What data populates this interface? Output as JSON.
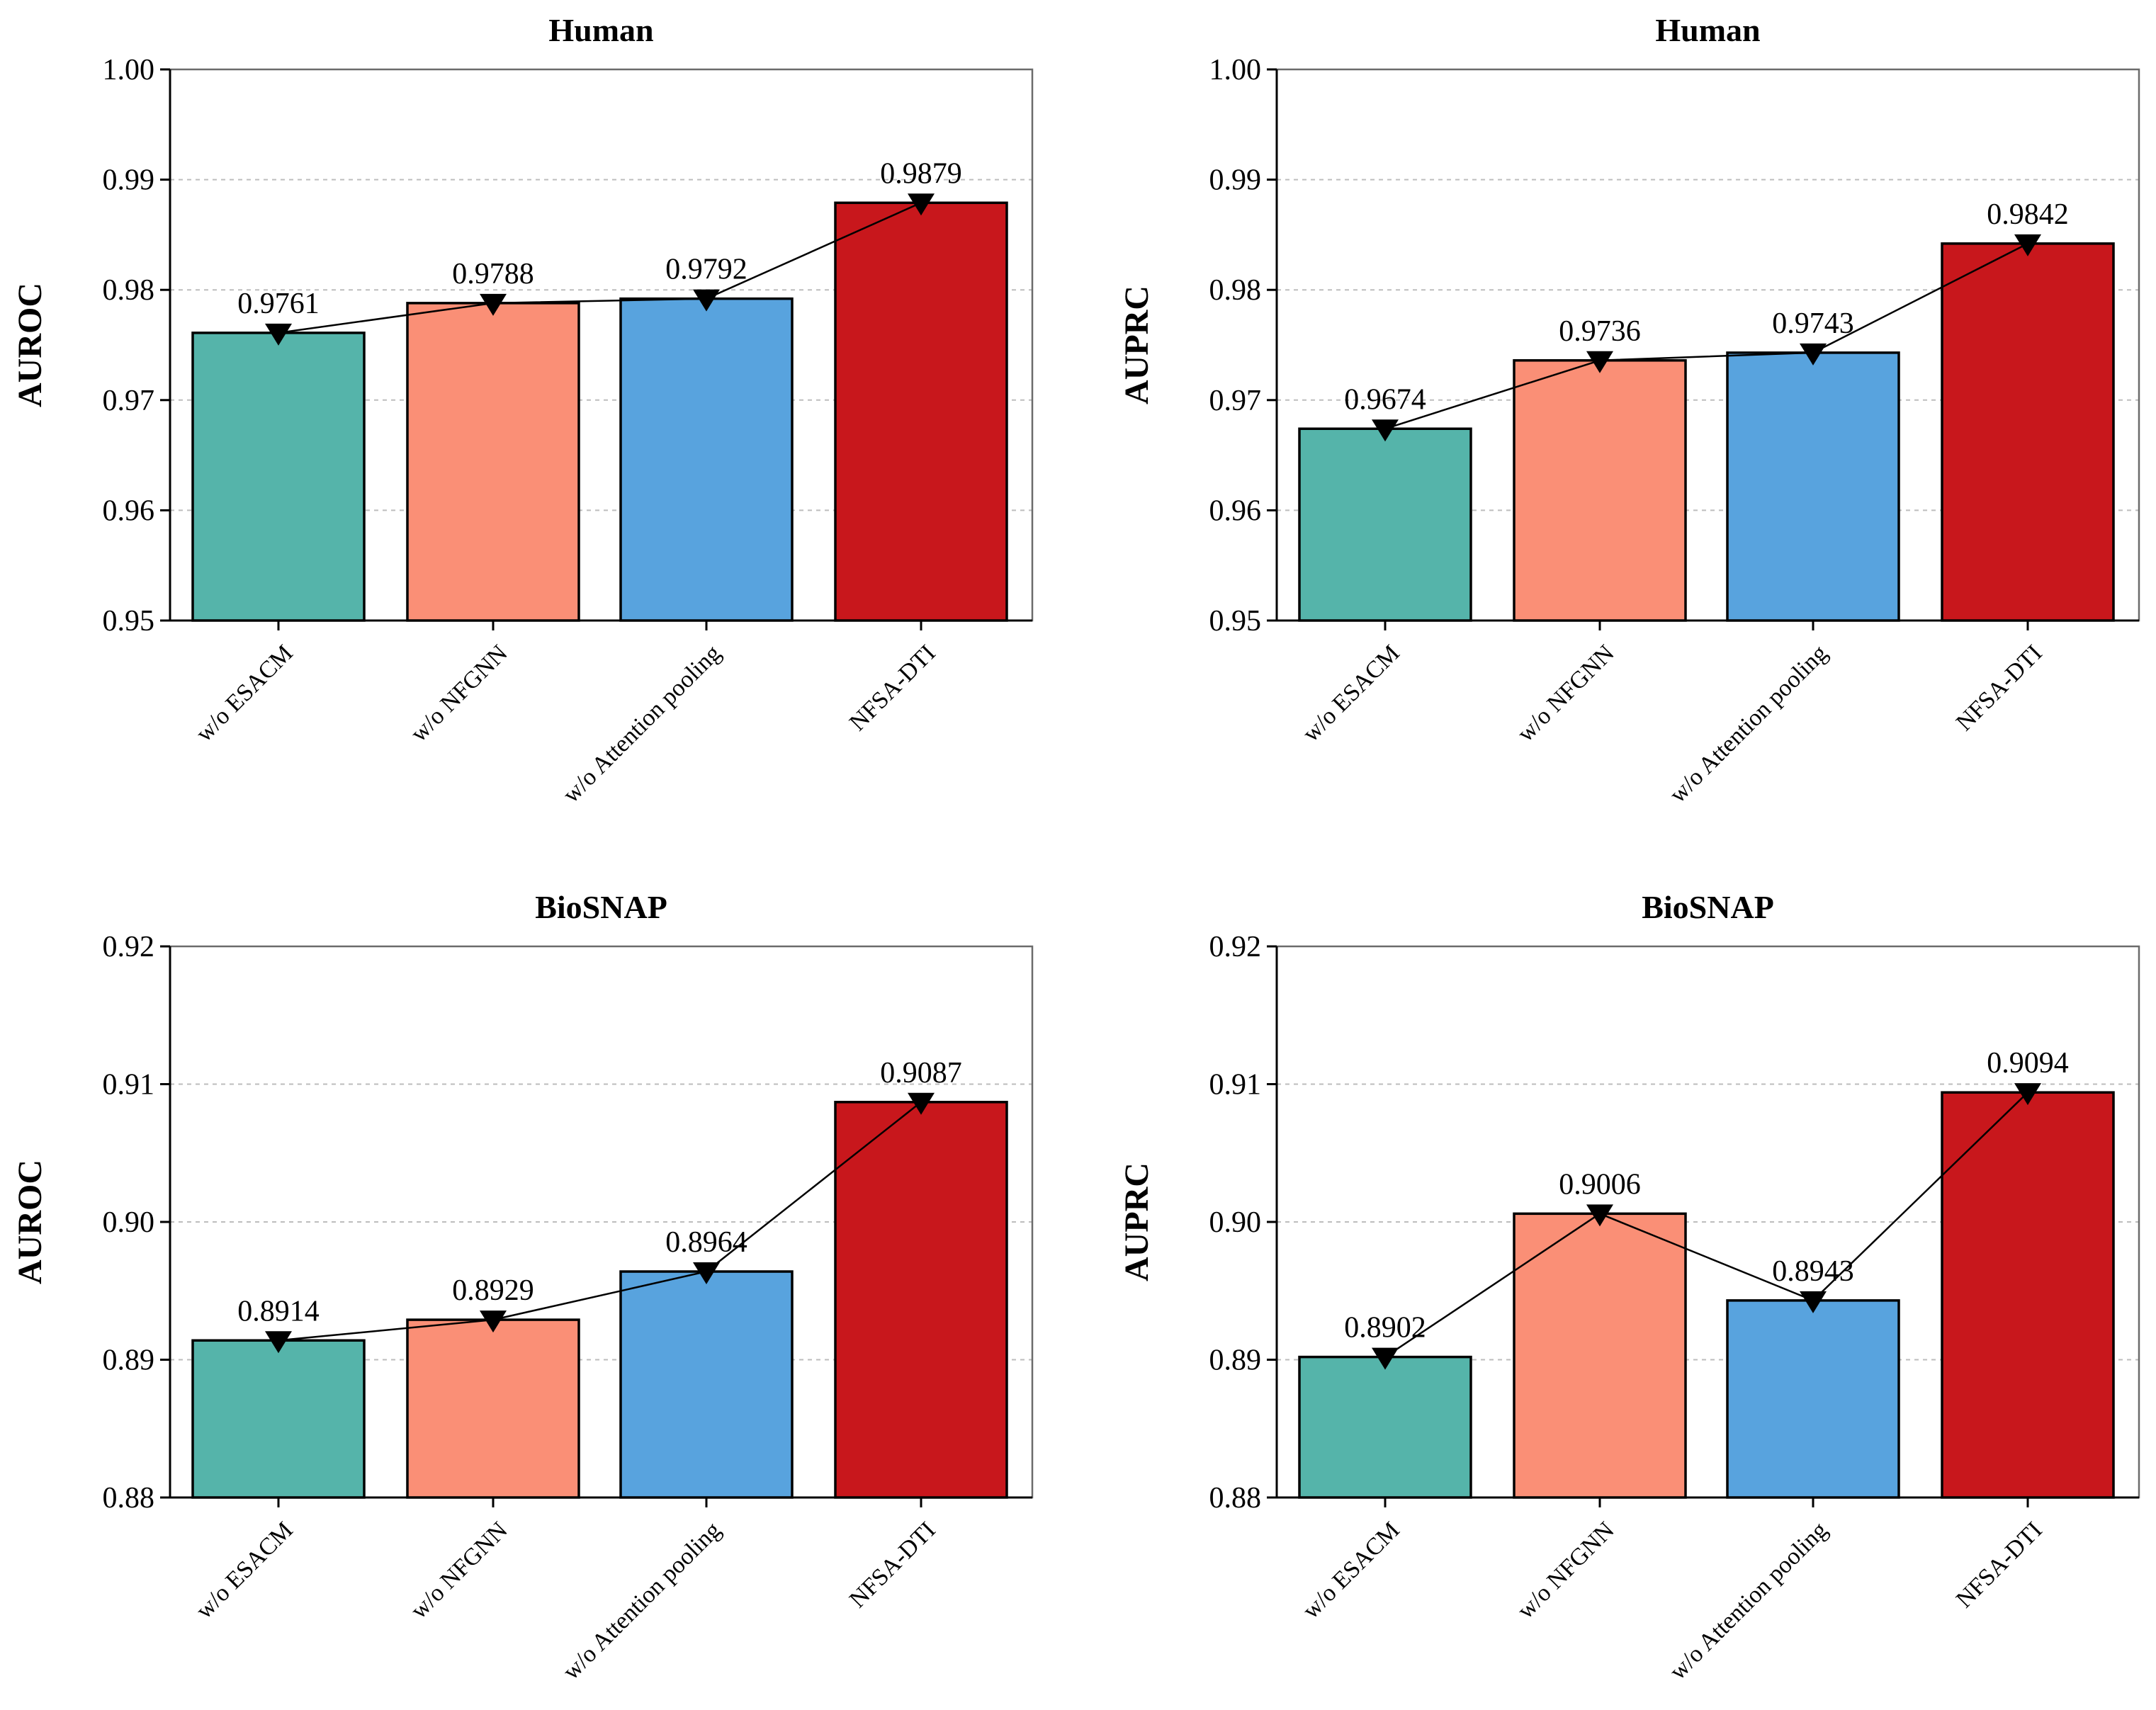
{
  "colors": [
    "#55b4aa",
    "#fa8f76",
    "#58a3de",
    "#c8171c"
  ],
  "chart_data": [
    {
      "type": "bar",
      "title": "Human",
      "ylabel": "AUROC",
      "xlabel": "",
      "categories": [
        "w/o ESACM",
        "w/o NFGNN",
        "w/o Attention pooling",
        "NFSA-DTI"
      ],
      "values": [
        0.9761,
        0.9788,
        0.9792,
        0.9879
      ],
      "value_labels": [
        "0.9761",
        "0.9788",
        "0.9792",
        "0.9879"
      ],
      "ylim": [
        0.95,
        1.0
      ],
      "yticks": [
        0.95,
        0.96,
        0.97,
        0.98,
        0.99,
        1.0
      ],
      "ytick_labels": [
        "0.95",
        "0.96",
        "0.97",
        "0.98",
        "0.99",
        "1.00"
      ],
      "grid": true,
      "overlay": "line with downward triangle markers"
    },
    {
      "type": "bar",
      "title": "Human",
      "ylabel": "AUPRC",
      "xlabel": "",
      "categories": [
        "w/o ESACM",
        "w/o NFGNN",
        "w/o Attention pooling",
        "NFSA-DTI"
      ],
      "values": [
        0.9674,
        0.9736,
        0.9743,
        0.9842
      ],
      "value_labels": [
        "0.9674",
        "0.9736",
        "0.9743",
        "0.9842"
      ],
      "ylim": [
        0.95,
        1.0
      ],
      "yticks": [
        0.95,
        0.96,
        0.97,
        0.98,
        0.99,
        1.0
      ],
      "ytick_labels": [
        "0.95",
        "0.96",
        "0.97",
        "0.98",
        "0.99",
        "1.00"
      ],
      "grid": true,
      "overlay": "line with downward triangle markers"
    },
    {
      "type": "bar",
      "title": "BioSNAP",
      "ylabel": "AUROC",
      "xlabel": "",
      "categories": [
        "w/o ESACM",
        "w/o NFGNN",
        "w/o Attention pooling",
        "NFSA-DTI"
      ],
      "values": [
        0.8914,
        0.8929,
        0.8964,
        0.9087
      ],
      "value_labels": [
        "0.8914",
        "0.8929",
        "0.8964",
        "0.9087"
      ],
      "ylim": [
        0.88,
        0.92
      ],
      "yticks": [
        0.88,
        0.89,
        0.9,
        0.91,
        0.92
      ],
      "ytick_labels": [
        "0.88",
        "0.89",
        "0.90",
        "0.91",
        "0.92"
      ],
      "grid": true,
      "overlay": "line with downward triangle markers"
    },
    {
      "type": "bar",
      "title": "BioSNAP",
      "ylabel": "AUPRC",
      "xlabel": "",
      "categories": [
        "w/o ESACM",
        "w/o NFGNN",
        "w/o Attention pooling",
        "NFSA-DTI"
      ],
      "values": [
        0.8902,
        0.9006,
        0.8943,
        0.9094
      ],
      "value_labels": [
        "0.8902",
        "0.9006",
        "0.8943",
        "0.9094"
      ],
      "ylim": [
        0.88,
        0.92
      ],
      "yticks": [
        0.88,
        0.89,
        0.9,
        0.91,
        0.92
      ],
      "ytick_labels": [
        "0.88",
        "0.89",
        "0.90",
        "0.91",
        "0.92"
      ],
      "grid": true,
      "overlay": "line with downward triangle markers"
    }
  ]
}
